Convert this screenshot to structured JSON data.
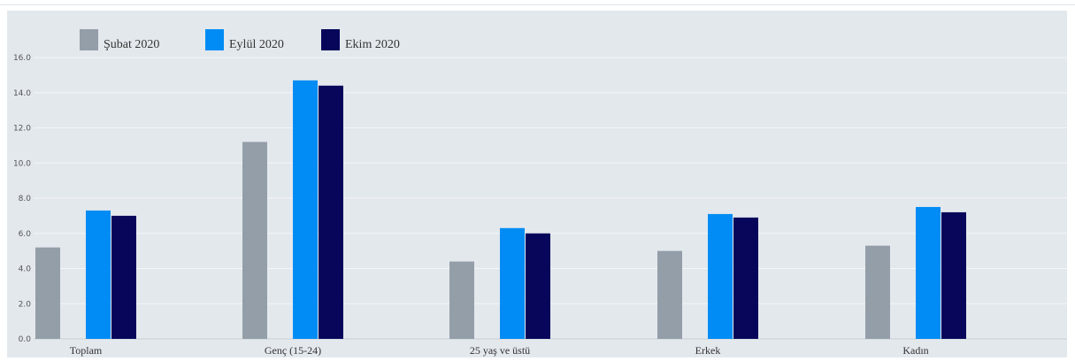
{
  "chart_data": {
    "type": "bar",
    "categories": [
      "Toplam",
      "Genç (15-24)",
      "25 yaş ve üstü",
      "Erkek",
      "Kadın"
    ],
    "series": [
      {
        "name": "Şubat 2020",
        "color": "#939ea8",
        "values": [
          5.2,
          11.2,
          4.4,
          5.0,
          5.3
        ]
      },
      {
        "name": "Eylül 2020",
        "color": "#008cf4",
        "values": [
          7.3,
          14.7,
          6.3,
          7.1,
          7.5
        ]
      },
      {
        "name": "Ekim 2020",
        "color": "#07065a",
        "values": [
          7.0,
          14.4,
          6.0,
          6.9,
          7.2
        ]
      }
    ],
    "yticks": [
      "0.0",
      "2.0",
      "4.0",
      "6.0",
      "8.0",
      "10.0",
      "12.0",
      "14.0",
      "16.0"
    ],
    "ylim": [
      0,
      16
    ],
    "grid": true,
    "legend_position": "top-left",
    "title": "",
    "xlabel": "",
    "ylabel": ""
  }
}
